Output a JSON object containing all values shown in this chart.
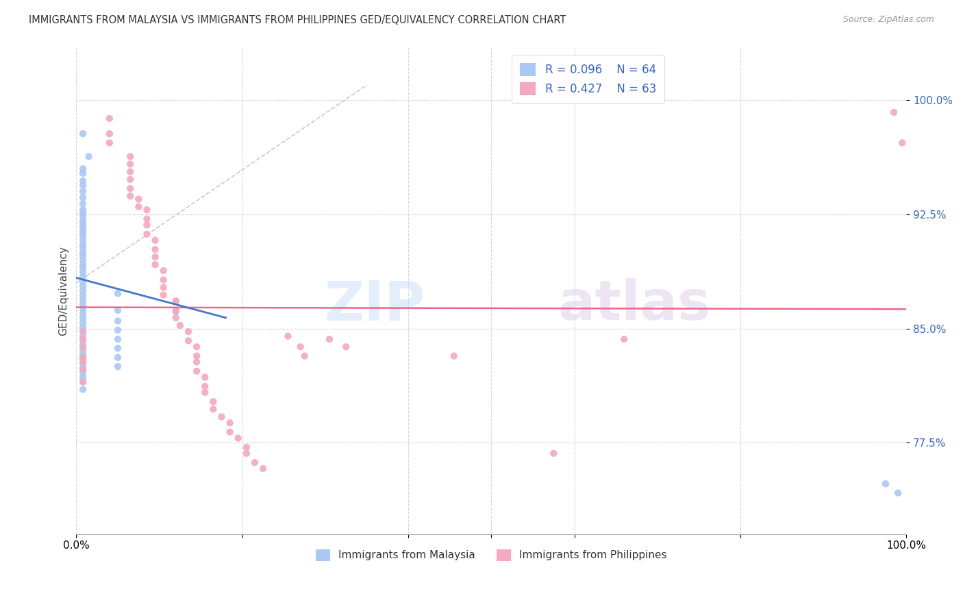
{
  "title": "IMMIGRANTS FROM MALAYSIA VS IMMIGRANTS FROM PHILIPPINES GED/EQUIVALENCY CORRELATION CHART",
  "source": "Source: ZipAtlas.com",
  "ylabel": "GED/Equivalency",
  "ytick_labels": [
    "77.5%",
    "85.0%",
    "92.5%",
    "100.0%"
  ],
  "ytick_values": [
    0.775,
    0.85,
    0.925,
    1.0
  ],
  "xlim": [
    0.0,
    1.0
  ],
  "ylim": [
    0.715,
    1.035
  ],
  "color_malaysia": "#aac8f5",
  "color_philippines": "#f5a8be",
  "trendline_malaysia_color": "#4477cc",
  "trendline_philippines_color": "#ee6688",
  "watermark_zip": "ZIP",
  "watermark_atlas": "atlas",
  "label_malaysia": "Immigrants from Malaysia",
  "label_philippines": "Immigrants from Philippines",
  "malaysia_x": [
    0.008,
    0.015,
    0.008,
    0.008,
    0.008,
    0.008,
    0.008,
    0.008,
    0.008,
    0.008,
    0.008,
    0.008,
    0.008,
    0.008,
    0.008,
    0.008,
    0.008,
    0.008,
    0.008,
    0.008,
    0.008,
    0.008,
    0.008,
    0.008,
    0.008,
    0.008,
    0.008,
    0.008,
    0.008,
    0.008,
    0.008,
    0.008,
    0.008,
    0.008,
    0.008,
    0.008,
    0.008,
    0.008,
    0.008,
    0.008,
    0.008,
    0.008,
    0.008,
    0.008,
    0.008,
    0.008,
    0.008,
    0.008,
    0.008,
    0.008,
    0.008,
    0.05,
    0.05,
    0.05,
    0.05,
    0.05,
    0.05,
    0.05,
    0.05,
    0.12,
    0.12,
    0.975,
    0.99,
    0.008
  ],
  "malaysia_y": [
    0.978,
    0.963,
    0.955,
    0.952,
    0.947,
    0.944,
    0.94,
    0.936,
    0.932,
    0.928,
    0.926,
    0.924,
    0.921,
    0.919,
    0.917,
    0.915,
    0.913,
    0.911,
    0.908,
    0.905,
    0.903,
    0.9,
    0.898,
    0.895,
    0.892,
    0.89,
    0.887,
    0.884,
    0.881,
    0.878,
    0.875,
    0.872,
    0.869,
    0.866,
    0.863,
    0.86,
    0.857,
    0.854,
    0.851,
    0.848,
    0.845,
    0.842,
    0.839,
    0.836,
    0.833,
    0.83,
    0.827,
    0.824,
    0.821,
    0.818,
    0.815,
    0.873,
    0.862,
    0.855,
    0.849,
    0.843,
    0.837,
    0.831,
    0.825,
    0.868,
    0.861,
    0.748,
    0.742,
    0.81
  ],
  "philippines_x": [
    0.008,
    0.008,
    0.008,
    0.008,
    0.008,
    0.008,
    0.008,
    0.04,
    0.04,
    0.04,
    0.065,
    0.065,
    0.065,
    0.065,
    0.065,
    0.065,
    0.075,
    0.075,
    0.085,
    0.085,
    0.085,
    0.085,
    0.095,
    0.095,
    0.095,
    0.095,
    0.105,
    0.105,
    0.105,
    0.105,
    0.12,
    0.12,
    0.12,
    0.125,
    0.135,
    0.135,
    0.145,
    0.145,
    0.145,
    0.145,
    0.155,
    0.155,
    0.155,
    0.165,
    0.165,
    0.175,
    0.185,
    0.185,
    0.195,
    0.205,
    0.205,
    0.215,
    0.225,
    0.255,
    0.27,
    0.275,
    0.305,
    0.325,
    0.455,
    0.575,
    0.66,
    0.985,
    0.995
  ],
  "philippines_y": [
    0.848,
    0.843,
    0.838,
    0.831,
    0.828,
    0.823,
    0.815,
    0.988,
    0.978,
    0.972,
    0.963,
    0.958,
    0.953,
    0.948,
    0.942,
    0.937,
    0.935,
    0.93,
    0.928,
    0.922,
    0.918,
    0.912,
    0.908,
    0.902,
    0.897,
    0.892,
    0.888,
    0.882,
    0.877,
    0.872,
    0.868,
    0.862,
    0.857,
    0.852,
    0.848,
    0.842,
    0.838,
    0.832,
    0.828,
    0.822,
    0.818,
    0.812,
    0.808,
    0.802,
    0.797,
    0.792,
    0.788,
    0.782,
    0.778,
    0.772,
    0.768,
    0.762,
    0.758,
    0.845,
    0.838,
    0.832,
    0.843,
    0.838,
    0.832,
    0.768,
    0.843,
    0.992,
    0.972
  ]
}
